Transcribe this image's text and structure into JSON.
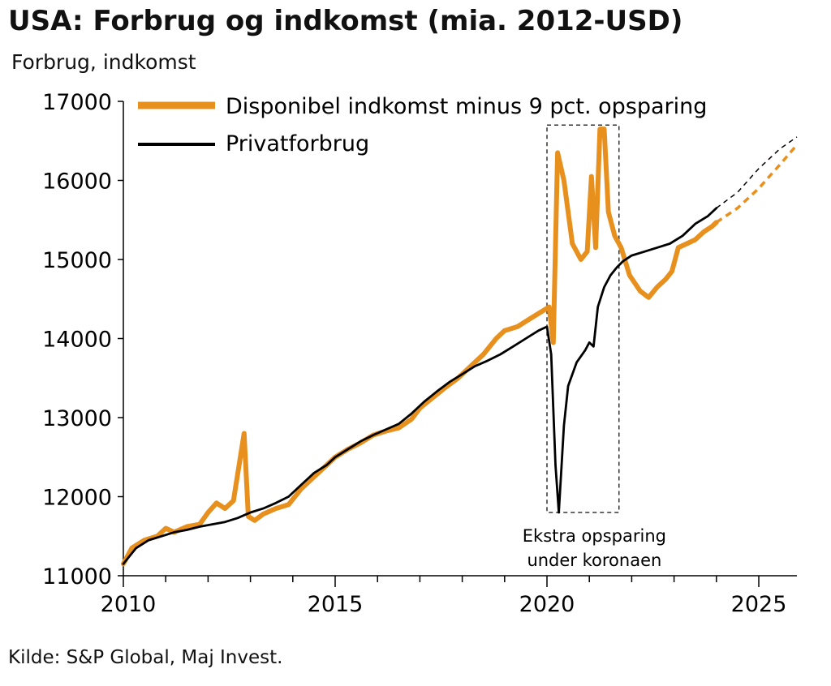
{
  "title": "USA: Forbrug og indkomst (mia. 2012-USD)",
  "ylabel": "Forbrug, indkomst",
  "source": "Kilde: S&P Global, Maj Invest.",
  "colors": {
    "income": "#E8901E",
    "consumption": "#000000",
    "axis": "#000000",
    "box": "#333333"
  },
  "chart_data": {
    "type": "line",
    "ylim": [
      11000,
      17000
    ],
    "xlim": [
      2010,
      2025.9
    ],
    "yticks": [
      11000,
      12000,
      13000,
      14000,
      15000,
      16000,
      17000
    ],
    "xticks": [
      2010,
      2015,
      2020,
      2025
    ],
    "grid": false,
    "legend_position": "top-left",
    "annotation": {
      "lines": [
        "Ekstra opsparing",
        "under koronaen"
      ],
      "box": {
        "x0": 2020.0,
        "x1": 2021.7,
        "y0": 11800,
        "y1": 16700
      }
    },
    "series": [
      {
        "name": "Disponibel indkomst minus 9 pct. opsparing",
        "key": "income",
        "points": [
          [
            2010.0,
            11150
          ],
          [
            2010.2,
            11350
          ],
          [
            2010.5,
            11450
          ],
          [
            2010.8,
            11500
          ],
          [
            2011.0,
            11600
          ],
          [
            2011.2,
            11550
          ],
          [
            2011.5,
            11620
          ],
          [
            2011.8,
            11650
          ],
          [
            2012.0,
            11800
          ],
          [
            2012.2,
            11920
          ],
          [
            2012.4,
            11850
          ],
          [
            2012.6,
            11950
          ],
          [
            2012.85,
            12800
          ],
          [
            2012.95,
            11750
          ],
          [
            2013.1,
            11700
          ],
          [
            2013.3,
            11780
          ],
          [
            2013.6,
            11850
          ],
          [
            2013.9,
            11900
          ],
          [
            2014.2,
            12100
          ],
          [
            2014.5,
            12250
          ],
          [
            2014.8,
            12400
          ],
          [
            2015.0,
            12500
          ],
          [
            2015.3,
            12600
          ],
          [
            2015.6,
            12680
          ],
          [
            2015.9,
            12780
          ],
          [
            2016.2,
            12830
          ],
          [
            2016.5,
            12870
          ],
          [
            2016.8,
            12980
          ],
          [
            2017.0,
            13120
          ],
          [
            2017.3,
            13250
          ],
          [
            2017.6,
            13380
          ],
          [
            2017.9,
            13500
          ],
          [
            2018.2,
            13650
          ],
          [
            2018.5,
            13800
          ],
          [
            2018.8,
            14000
          ],
          [
            2019.0,
            14100
          ],
          [
            2019.3,
            14150
          ],
          [
            2019.6,
            14250
          ],
          [
            2019.9,
            14350
          ],
          [
            2020.05,
            14400
          ],
          [
            2020.15,
            13950
          ],
          [
            2020.25,
            16350
          ],
          [
            2020.4,
            16000
          ],
          [
            2020.5,
            15600
          ],
          [
            2020.6,
            15200
          ],
          [
            2020.8,
            15000
          ],
          [
            2020.95,
            15100
          ],
          [
            2021.05,
            16050
          ],
          [
            2021.15,
            15150
          ],
          [
            2021.25,
            16650
          ],
          [
            2021.35,
            16650
          ],
          [
            2021.45,
            15600
          ],
          [
            2021.6,
            15300
          ],
          [
            2021.75,
            15150
          ],
          [
            2021.95,
            14800
          ],
          [
            2022.2,
            14600
          ],
          [
            2022.4,
            14520
          ],
          [
            2022.6,
            14650
          ],
          [
            2022.8,
            14750
          ],
          [
            2022.95,
            14850
          ],
          [
            2023.1,
            15150
          ],
          [
            2023.3,
            15200
          ],
          [
            2023.5,
            15250
          ],
          [
            2023.7,
            15350
          ],
          [
            2023.9,
            15420
          ],
          [
            2024.0,
            15470
          ]
        ],
        "forecast": [
          [
            2024.0,
            15470
          ],
          [
            2024.5,
            15650
          ],
          [
            2025.0,
            15900
          ],
          [
            2025.5,
            16200
          ],
          [
            2025.9,
            16450
          ]
        ]
      },
      {
        "name": "Privatforbrug",
        "key": "consumption",
        "points": [
          [
            2010.0,
            11150
          ],
          [
            2010.3,
            11350
          ],
          [
            2010.6,
            11450
          ],
          [
            2010.9,
            11500
          ],
          [
            2011.2,
            11550
          ],
          [
            2011.5,
            11580
          ],
          [
            2011.8,
            11620
          ],
          [
            2012.1,
            11650
          ],
          [
            2012.4,
            11680
          ],
          [
            2012.7,
            11730
          ],
          [
            2013.0,
            11800
          ],
          [
            2013.3,
            11850
          ],
          [
            2013.6,
            11920
          ],
          [
            2013.9,
            12000
          ],
          [
            2014.2,
            12150
          ],
          [
            2014.5,
            12300
          ],
          [
            2014.8,
            12400
          ],
          [
            2015.0,
            12500
          ],
          [
            2015.3,
            12600
          ],
          [
            2015.6,
            12700
          ],
          [
            2015.9,
            12780
          ],
          [
            2016.2,
            12850
          ],
          [
            2016.5,
            12920
          ],
          [
            2016.8,
            13050
          ],
          [
            2017.1,
            13200
          ],
          [
            2017.4,
            13330
          ],
          [
            2017.7,
            13450
          ],
          [
            2018.0,
            13550
          ],
          [
            2018.3,
            13650
          ],
          [
            2018.6,
            13720
          ],
          [
            2018.9,
            13800
          ],
          [
            2019.2,
            13900
          ],
          [
            2019.5,
            14000
          ],
          [
            2019.8,
            14100
          ],
          [
            2020.0,
            14150
          ],
          [
            2020.1,
            13800
          ],
          [
            2020.2,
            12400
          ],
          [
            2020.28,
            11800
          ],
          [
            2020.4,
            12900
          ],
          [
            2020.5,
            13400
          ],
          [
            2020.7,
            13700
          ],
          [
            2020.9,
            13850
          ],
          [
            2021.0,
            13950
          ],
          [
            2021.1,
            13900
          ],
          [
            2021.2,
            14400
          ],
          [
            2021.35,
            14650
          ],
          [
            2021.5,
            14800
          ],
          [
            2021.65,
            14900
          ],
          [
            2021.8,
            14980
          ],
          [
            2022.0,
            15050
          ],
          [
            2022.3,
            15100
          ],
          [
            2022.6,
            15150
          ],
          [
            2022.9,
            15200
          ],
          [
            2023.2,
            15300
          ],
          [
            2023.5,
            15450
          ],
          [
            2023.8,
            15550
          ],
          [
            2024.0,
            15650
          ]
        ],
        "forecast": [
          [
            2024.0,
            15650
          ],
          [
            2024.5,
            15850
          ],
          [
            2025.0,
            16150
          ],
          [
            2025.5,
            16400
          ],
          [
            2025.9,
            16550
          ]
        ]
      }
    ]
  }
}
